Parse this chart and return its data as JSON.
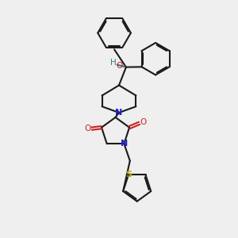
{
  "bg_color": "#efefef",
  "bond_color": "#1a1a1a",
  "N_color": "#2020cc",
  "O_color": "#cc2020",
  "S_color": "#b8a000",
  "HO_color": "#3a7a7a",
  "lw": 1.5,
  "figsize": [
    3.0,
    3.0
  ],
  "dpi": 100,
  "xlim": [
    0,
    10
  ],
  "ylim": [
    0,
    10
  ]
}
